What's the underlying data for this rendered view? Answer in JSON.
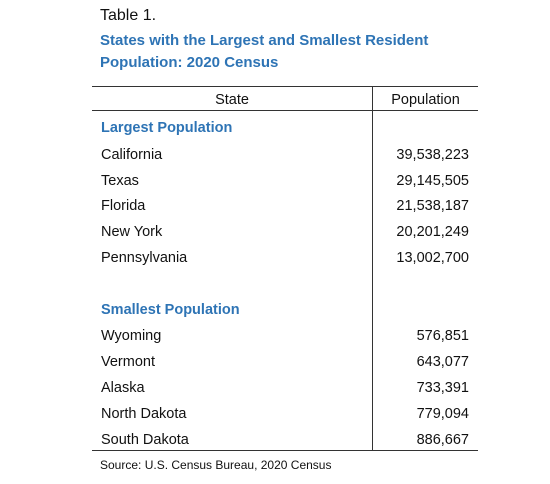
{
  "title": "Table 1.",
  "subtitle": "States with the Largest and Smallest Resident Population:  2020 Census",
  "table": {
    "columns": [
      "State",
      "Population"
    ],
    "sections": [
      {
        "heading": "Largest Population",
        "rows": [
          [
            "California",
            "39,538,223"
          ],
          [
            "Texas",
            "29,145,505"
          ],
          [
            "Florida",
            "21,538,187"
          ],
          [
            "New York",
            "20,201,249"
          ],
          [
            "Pennsylvania",
            "13,002,700"
          ]
        ]
      },
      {
        "heading": "Smallest Population",
        "rows": [
          [
            "Wyoming",
            "576,851"
          ],
          [
            "Vermont",
            "643,077"
          ],
          [
            "Alaska",
            "733,391"
          ],
          [
            "North Dakota",
            "779,094"
          ],
          [
            "South Dakota",
            "886,667"
          ]
        ]
      }
    ]
  },
  "source": "Source: U.S. Census Bureau, 2020 Census"
}
